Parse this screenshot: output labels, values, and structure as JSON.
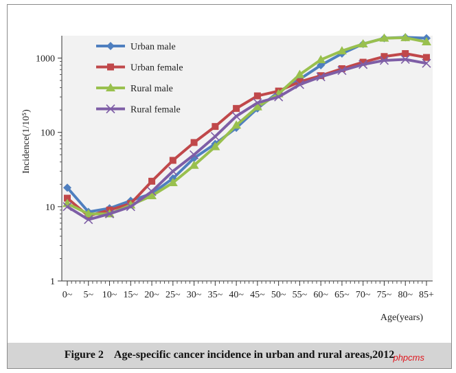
{
  "chart_data": {
    "type": "line",
    "title": "",
    "ylabel": "Incidence(1/10⁵)",
    "xlabel": "Age(years)",
    "yscale": "log",
    "ylim": [
      1,
      2000
    ],
    "yticks": [
      1,
      10,
      100,
      1000
    ],
    "ytick_labels": [
      "1",
      "10",
      "100",
      "1000"
    ],
    "categories": [
      "0~",
      "5~",
      "10~",
      "15~",
      "20~",
      "25~",
      "30~",
      "35~",
      "40~",
      "45~",
      "50~",
      "55~",
      "60~",
      "65~",
      "70~",
      "75~",
      "80~",
      "85+"
    ],
    "legend_position": "top-left",
    "grid": false,
    "series": [
      {
        "name": "Urban male",
        "color": "#4f7fbf",
        "marker": "diamond",
        "values": [
          18,
          8.5,
          9.5,
          12,
          15,
          24,
          45,
          70,
          115,
          210,
          350,
          520,
          800,
          1150,
          1550,
          1850,
          1900,
          1850
        ]
      },
      {
        "name": "Urban female",
        "color": "#c0484a",
        "marker": "square",
        "values": [
          13,
          7.5,
          9,
          11,
          22,
          42,
          73,
          120,
          210,
          310,
          360,
          480,
          580,
          720,
          880,
          1050,
          1150,
          1020
        ]
      },
      {
        "name": "Rural male",
        "color": "#99c04e",
        "marker": "triangle",
        "values": [
          11,
          8,
          8,
          10.5,
          14,
          21,
          36,
          64,
          125,
          220,
          330,
          600,
          950,
          1250,
          1550,
          1850,
          1880,
          1650
        ]
      },
      {
        "name": "Rural female",
        "color": "#7e5ea6",
        "marker": "x",
        "values": [
          10,
          6.7,
          8,
          10,
          16,
          30,
          50,
          88,
          165,
          250,
          300,
          440,
          560,
          680,
          820,
          930,
          960,
          850
        ]
      }
    ]
  },
  "figure": {
    "caption": "Figure 2    Age-specific cancer incidence in urban and rural areas,2012",
    "watermark": "phpcms"
  }
}
